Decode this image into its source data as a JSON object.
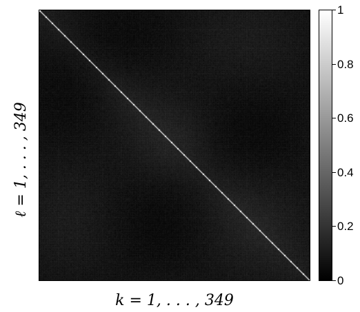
{
  "chart_data": {
    "type": "heatmap",
    "title": "",
    "xlabel": "k = 1, . . . , 349",
    "ylabel": "ℓ = 1, . . . , 349",
    "n_rows": 349,
    "n_cols": 349,
    "value_range": [
      0,
      1
    ],
    "diagonal_value": 1,
    "off_diagonal_typical_range": [
      0.05,
      0.3
    ],
    "colormap": "gray",
    "colorbar": {
      "ticks": [
        0,
        0.2,
        0.4,
        0.6,
        0.8,
        1
      ],
      "tick_labels": [
        "0",
        "0.2",
        "0.4",
        "0.6",
        "0.8",
        "1"
      ],
      "placement": "right"
    }
  }
}
